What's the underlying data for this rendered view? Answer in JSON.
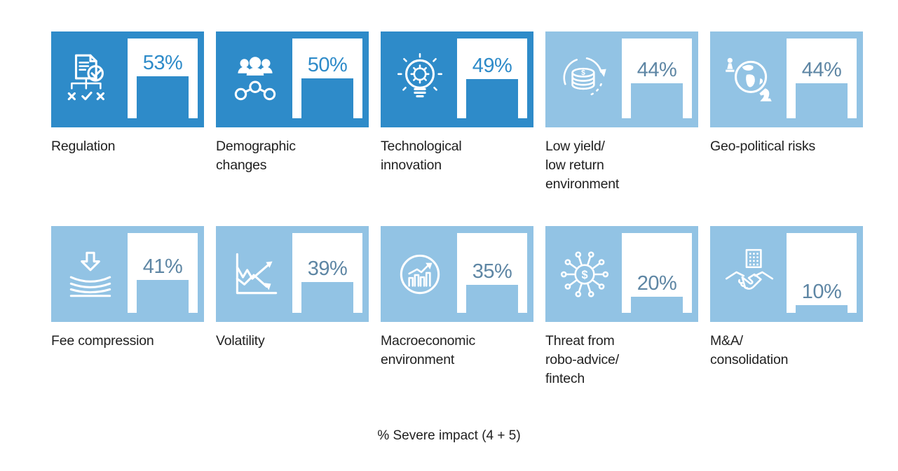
{
  "caption": "% Severe impact (4 + 5)",
  "colors": {
    "dark_tile": "#2e8bc9",
    "light_tile": "#92c3e4",
    "pct_text_on_light": "#5e86a4",
    "label_text": "#212121",
    "gauge_background": "#ffffff"
  },
  "tiles": [
    {
      "label": "Regulation",
      "value": 53,
      "pct_label": "53%",
      "variant": "dark",
      "icon": "regulation-document-icon"
    },
    {
      "label": "Demographic\nchanges",
      "value": 50,
      "pct_label": "50%",
      "variant": "dark",
      "icon": "demographics-people-icon"
    },
    {
      "label": "Technological\ninnovation",
      "value": 49,
      "pct_label": "49%",
      "variant": "dark",
      "icon": "lightbulb-gear-icon"
    },
    {
      "label": "Low yield/\nlow return\nenvironment",
      "value": 44,
      "pct_label": "44%",
      "variant": "light",
      "icon": "coins-cycle-icon"
    },
    {
      "label": "Geo-political risks",
      "value": 44,
      "pct_label": "44%",
      "variant": "light",
      "icon": "globe-chess-icon"
    },
    {
      "label": "Fee compression",
      "value": 41,
      "pct_label": "41%",
      "variant": "light",
      "icon": "compression-arrow-icon"
    },
    {
      "label": "Volatility",
      "value": 39,
      "pct_label": "39%",
      "variant": "light",
      "icon": "volatility-chart-icon"
    },
    {
      "label": "Macroeconomic\nenvironment",
      "value": 35,
      "pct_label": "35%",
      "variant": "light",
      "icon": "growth-circle-icon"
    },
    {
      "label": "Threat from\nrobo-advice/\nfintech",
      "value": 20,
      "pct_label": "20%",
      "variant": "light",
      "icon": "fintech-network-icon"
    },
    {
      "label": "M&A/\nconsolidation",
      "value": 10,
      "pct_label": "10%",
      "variant": "light",
      "icon": "handshake-building-icon"
    }
  ],
  "chart_data": {
    "type": "bar",
    "title": "",
    "caption": "% Severe impact (4 + 5)",
    "categories": [
      "Regulation",
      "Demographic changes",
      "Technological innovation",
      "Low yield/ low return environment",
      "Geo-political risks",
      "Fee compression",
      "Volatility",
      "Macroeconomic environment",
      "Threat from robo-advice/ fintech",
      "M&A/ consolidation"
    ],
    "values": [
      53,
      50,
      49,
      44,
      44,
      41,
      39,
      35,
      20,
      10
    ],
    "unit": "%",
    "ylim": [
      0,
      100
    ],
    "layout": "2 rows x 5 pictogram tiles, bar height proportional to value inside white gauge box",
    "highlight": "top three categories use dark blue tiles, remainder light blue"
  }
}
